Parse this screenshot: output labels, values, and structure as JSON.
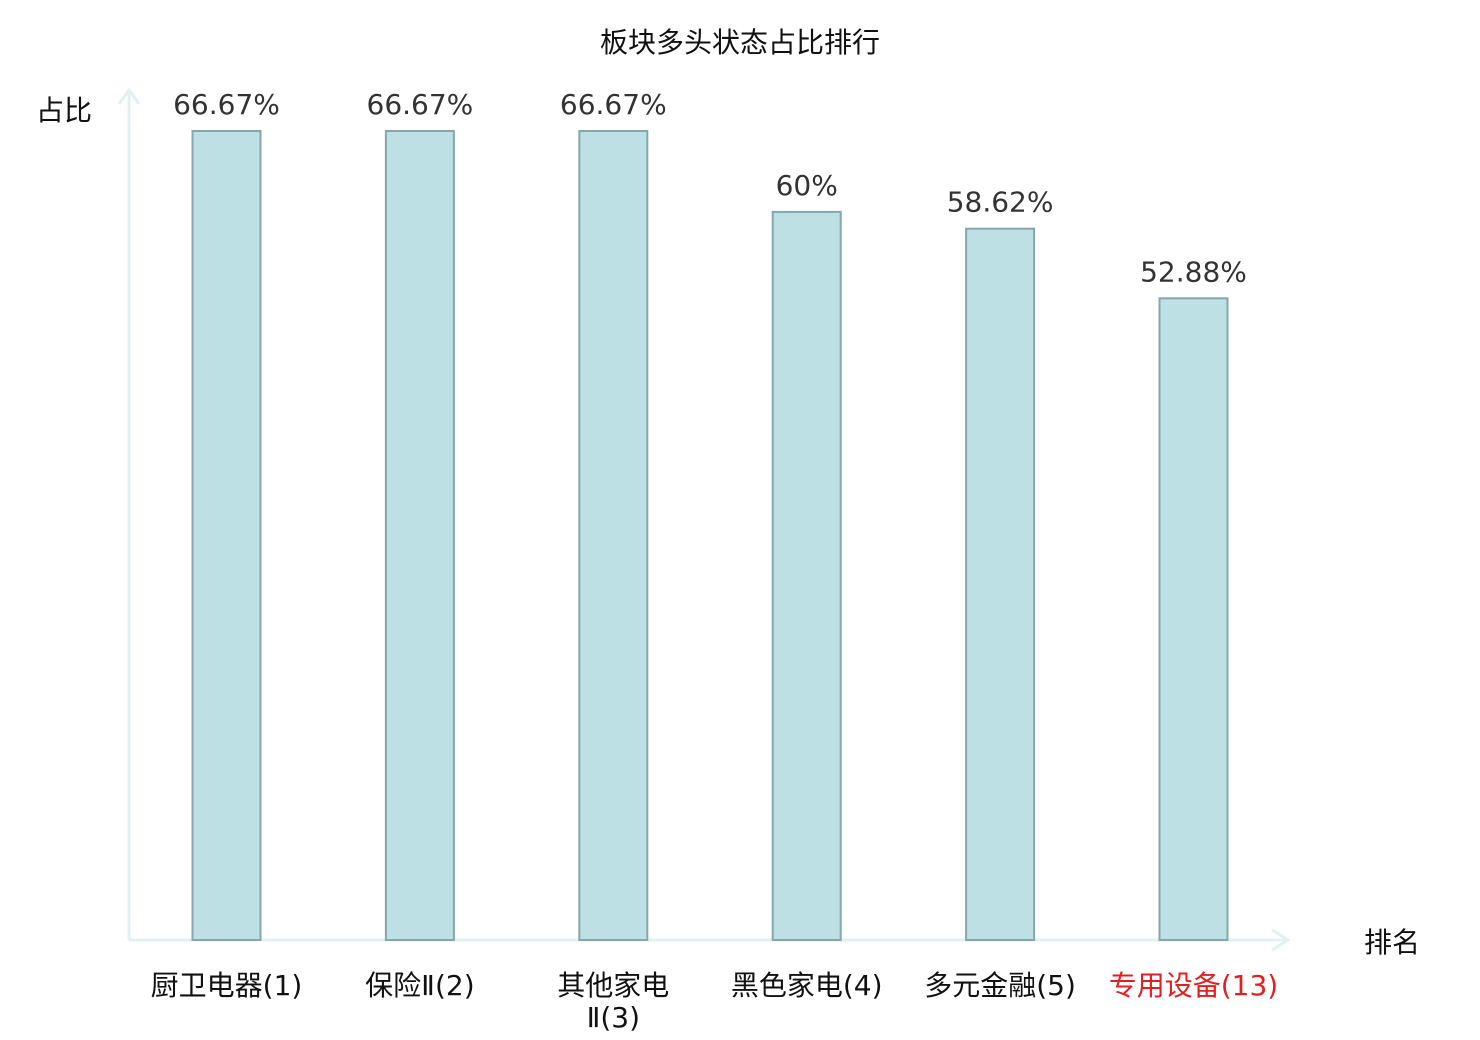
{
  "chart_data": {
    "type": "bar",
    "title": "板块多头状态占比排行",
    "ylabel": "占比",
    "xlabel": "排名",
    "ylim": [
      0,
      70
    ],
    "categories": [
      {
        "lines": [
          "厨卫电器(1)"
        ]
      },
      {
        "lines": [
          "保险Ⅱ(2)"
        ]
      },
      {
        "lines": [
          "其他家电",
          "Ⅱ(3)"
        ]
      },
      {
        "lines": [
          "黑色家电(4)"
        ]
      },
      {
        "lines": [
          "多元金融(5)"
        ]
      },
      {
        "lines": [
          "专用设备(13)"
        ],
        "highlight": true
      }
    ],
    "values": [
      66.67,
      66.67,
      66.67,
      60,
      58.62,
      52.88
    ],
    "value_labels": [
      "66.67%",
      "66.67%",
      "66.67%",
      "60%",
      "58.62%",
      "52.88%"
    ]
  },
  "colors": {
    "bar_fill": "#bce0e3",
    "bar_stroke": "#86a7a9",
    "axis": "#e0f2f0",
    "text": "#333333",
    "label": "#111111",
    "highlight": "#e02020"
  }
}
